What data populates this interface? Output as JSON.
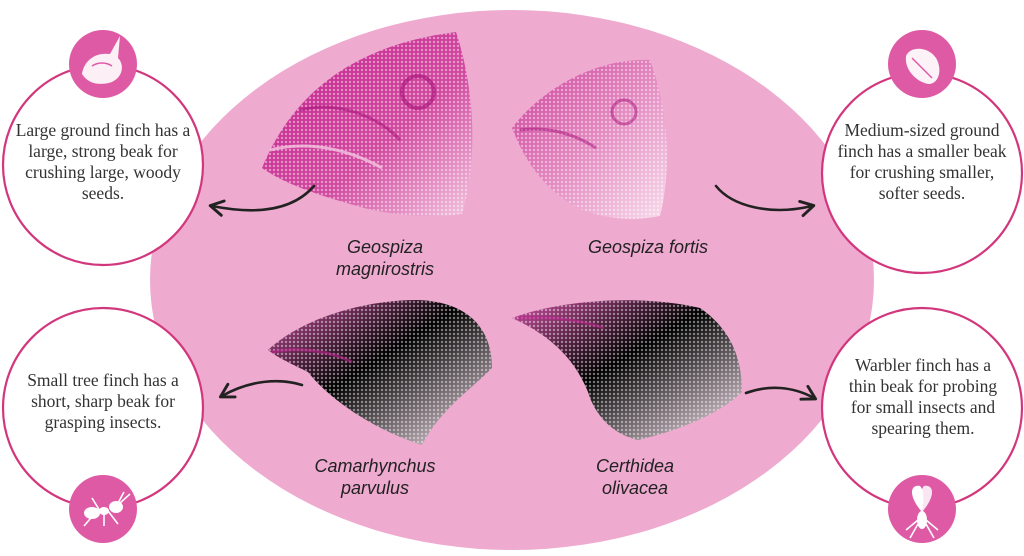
{
  "colors": {
    "oval": "#eeaacf",
    "circle_border": "#d2377d",
    "icon_fill": "#df5aa5",
    "beak_dark": "#c21e8c",
    "beak_light": "#f5d0e6",
    "arrow": "#222222",
    "text": "#333333"
  },
  "species": [
    {
      "name_line1": "Geospiza",
      "name_line2": "magnirostris"
    },
    {
      "name_line1": "Geospiza fortis",
      "name_line2": ""
    },
    {
      "name_line1": "Camarhynchus",
      "name_line2": "parvulus"
    },
    {
      "name_line1": "Certhidea",
      "name_line2": "olivacea"
    }
  ],
  "descriptions": [
    {
      "text": "Large ground finch has a large, strong beak for crushing large, woody seeds.",
      "icon": "large-seed-icon"
    },
    {
      "text": "Medium-sized ground finch has a smaller beak for crushing smaller, softer seeds.",
      "icon": "small-seed-icon"
    },
    {
      "text": "Small tree finch has a short, sharp beak for grasping insects.",
      "icon": "ant-icon"
    },
    {
      "text": "Warbler finch has a thin beak for probing for small insects and spearing them.",
      "icon": "fly-icon"
    }
  ]
}
